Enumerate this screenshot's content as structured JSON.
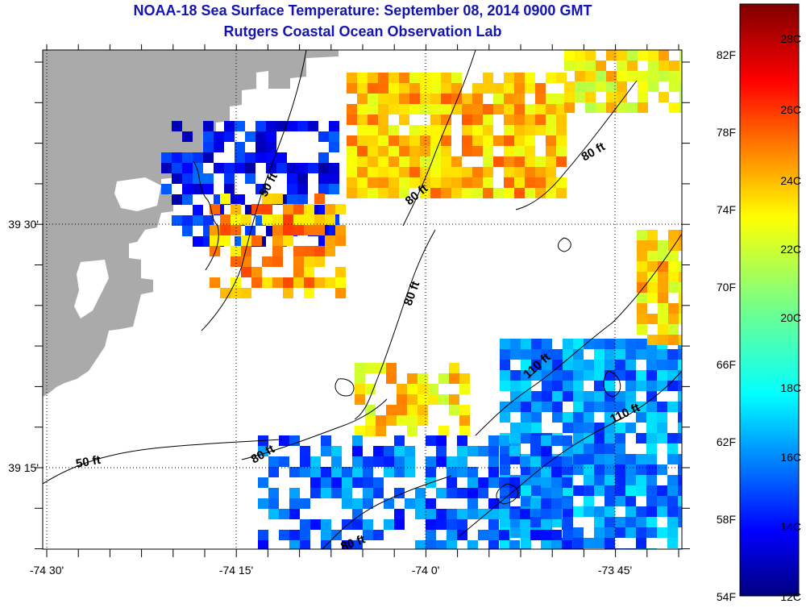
{
  "title": "NOAA-18 Sea Surface Temperature:  September 08, 2014 0900 GMT",
  "subtitle": "Rutgers Coastal Ocean Observation Lab",
  "x_ticks": [
    {
      "label": "-74 30'",
      "lon": -74.5
    },
    {
      "label": "-74 15'",
      "lon": -74.25
    },
    {
      "label": "-74 0'",
      "lon": -74.0
    },
    {
      "label": "-73 45'",
      "lon": -73.75
    }
  ],
  "y_ticks": [
    {
      "label": "39 30'",
      "lat": 39.5
    },
    {
      "label": "39 15'",
      "lat": 39.25
    }
  ],
  "colorbar": {
    "fahrenheit": [
      "82F",
      "78F",
      "74F",
      "70F",
      "66F",
      "62F",
      "58F",
      "54F"
    ],
    "celsius": [
      "28C",
      "26C",
      "24C",
      "22C",
      "20C",
      "18C",
      "16C",
      "14C",
      "12C"
    ],
    "range_c": [
      12,
      29.2
    ]
  },
  "contour_labels": [
    "50 ft",
    "80 ft",
    "80 ft",
    "80 ft",
    "110 ft",
    "110 ft",
    "80 ft",
    "50 ft",
    "80 ft"
  ],
  "colors": {
    "land": "#aaaaaa",
    "title": "#1414b4",
    "grid": "#000000"
  },
  "sst_regions": [
    {
      "name": "north-warm-patch",
      "temp_c": 24.0
    },
    {
      "name": "northeast-warm-patch",
      "temp_c": 23.0
    },
    {
      "name": "coastal-cold-strip",
      "temp_c": 14.0
    },
    {
      "name": "nearshore-warm-patch",
      "temp_c": 24.5
    },
    {
      "name": "central-warm-patch",
      "temp_c": 23.5
    },
    {
      "name": "southeast-cool-region",
      "temp_c": 16.0
    },
    {
      "name": "south-cool-region",
      "temp_c": 15.5
    },
    {
      "name": "east-warm-edge",
      "temp_c": 23.5
    }
  ]
}
